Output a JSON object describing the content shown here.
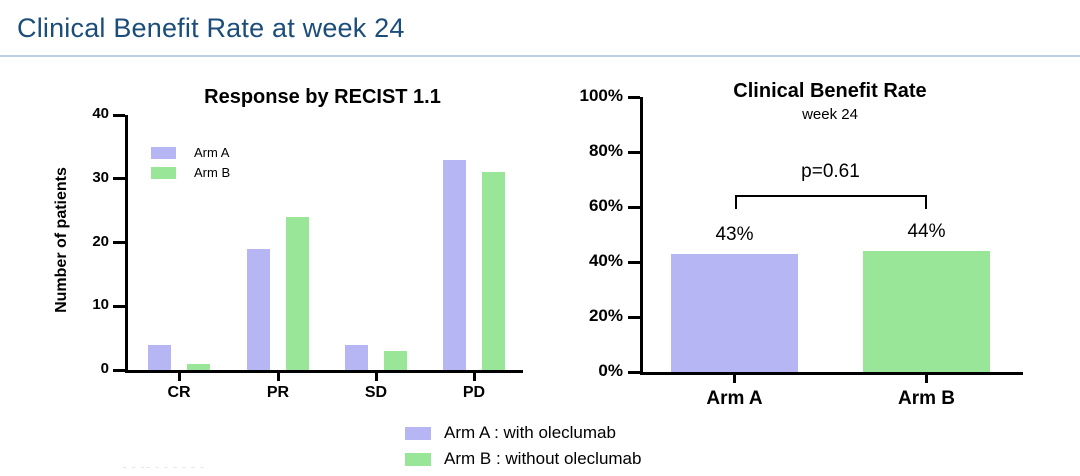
{
  "page": {
    "title": "Clinical Benefit Rate at week 24",
    "title_color": "#1b4d7a",
    "fineprint": "– – –– – – – –  – –"
  },
  "colors": {
    "arm_a": "#b6b6f5",
    "arm_b": "#9ae699",
    "axis": "#000000",
    "header_blue": "#1b4d7a"
  },
  "legend_bottom": {
    "items": [
      {
        "label": "Arm A : with oleclumab",
        "color": "#b6b6f5"
      },
      {
        "label": "Arm B : without oleclumab",
        "color": "#9ae699"
      }
    ]
  },
  "chart_data": [
    {
      "type": "bar",
      "title": "Response by RECIST 1.1",
      "xlabel": "",
      "ylabel": "Number of patients",
      "categories": [
        "CR",
        "PR",
        "SD",
        "PD"
      ],
      "series": [
        {
          "name": "Arm A",
          "color": "#b6b6f5",
          "values": [
            4,
            19,
            4,
            33
          ]
        },
        {
          "name": "Arm B",
          "color": "#9ae699",
          "values": [
            1,
            24,
            3,
            31
          ]
        }
      ],
      "ylim": [
        0,
        40
      ],
      "yticks": [
        0,
        10,
        20,
        30,
        40
      ],
      "grid": false,
      "legend_position": "inside-top-left"
    },
    {
      "type": "bar",
      "title": "Clinical Benefit Rate",
      "subtitle": "week 24",
      "xlabel": "",
      "ylabel": "",
      "categories": [
        "Arm A",
        "Arm B"
      ],
      "values": [
        43,
        44
      ],
      "value_labels": [
        "43%",
        "44%"
      ],
      "colors": [
        "#b6b6f5",
        "#9ae699"
      ],
      "ylim": [
        0,
        100
      ],
      "yticks": [
        0,
        20,
        40,
        60,
        80,
        100
      ],
      "ytick_labels": [
        "0%",
        "20%",
        "40%",
        "60%",
        "80%",
        "100%"
      ],
      "grid": false,
      "annotation": {
        "type": "comparison-bracket",
        "text": "p=0.61",
        "between": [
          "Arm A",
          "Arm B"
        ]
      }
    }
  ]
}
